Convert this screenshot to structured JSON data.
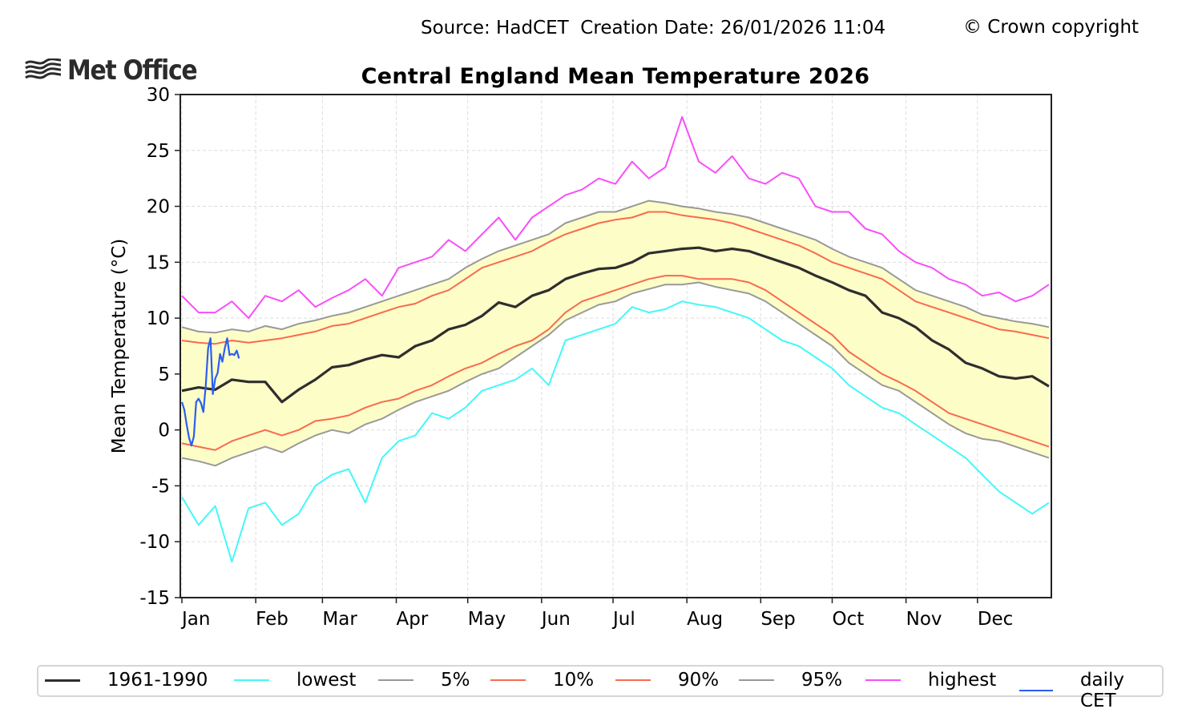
{
  "header": {
    "source_line": "Source: HadCET  Creation Date: 26/01/2026 11:04",
    "copyright": "© Crown copyright",
    "logo_text": "Met Office",
    "logo_icon": "met-office-waves-icon"
  },
  "colors": {
    "mean": "#2e2e2e",
    "lowest": "#44f8f8",
    "p5": "#999999",
    "p10": "#f96a4e",
    "p90": "#f96a4e",
    "p95": "#999999",
    "highest": "#f84ef8",
    "daily": "#2a5ef0",
    "band_fill": "#fdfdc8",
    "grid": "#dddddd"
  },
  "chart_data": {
    "type": "line",
    "title": "Central England Mean Temperature 2026",
    "xlabel": "",
    "ylabel": "Mean Temperature (°C)",
    "ylim": [
      -15,
      30
    ],
    "xlim_days": [
      1,
      365
    ],
    "y_ticks": [
      -15,
      -10,
      -5,
      0,
      5,
      10,
      15,
      20,
      25,
      30
    ],
    "x_ticks": [
      {
        "label": "Jan",
        "day": 1
      },
      {
        "label": "Feb",
        "day": 32
      },
      {
        "label": "Mar",
        "day": 60
      },
      {
        "label": "Apr",
        "day": 91
      },
      {
        "label": "May",
        "day": 121
      },
      {
        "label": "Jun",
        "day": 152
      },
      {
        "label": "Jul",
        "day": 182
      },
      {
        "label": "Aug",
        "day": 213
      },
      {
        "label": "Sep",
        "day": 244
      },
      {
        "label": "Oct",
        "day": 274
      },
      {
        "label": "Nov",
        "day": 305
      },
      {
        "label": "Dec",
        "day": 335
      }
    ],
    "grid": true,
    "legend_position": "bottom",
    "band": {
      "lower": "5%",
      "upper": "95%"
    },
    "sample_days": [
      1,
      8,
      15,
      22,
      29,
      36,
      43,
      50,
      57,
      64,
      71,
      78,
      85,
      92,
      99,
      106,
      113,
      120,
      127,
      134,
      141,
      148,
      155,
      162,
      169,
      176,
      183,
      190,
      197,
      204,
      211,
      218,
      225,
      232,
      239,
      246,
      253,
      260,
      267,
      274,
      281,
      288,
      295,
      302,
      309,
      316,
      323,
      330,
      337,
      344,
      351,
      358,
      365
    ],
    "series": [
      {
        "name": "1961-1990",
        "key": "mean",
        "values": [
          3.5,
          3.8,
          3.6,
          4.5,
          4.3,
          4.3,
          2.5,
          3.6,
          4.5,
          5.6,
          5.8,
          6.3,
          6.7,
          6.5,
          7.5,
          8.0,
          9.0,
          9.4,
          10.2,
          11.4,
          11.0,
          12.0,
          12.5,
          13.5,
          14.0,
          14.4,
          14.5,
          15.0,
          15.8,
          16.0,
          16.2,
          16.3,
          16.0,
          16.2,
          16.0,
          15.5,
          15.0,
          14.5,
          13.8,
          13.2,
          12.5,
          12.0,
          10.5,
          10.0,
          9.2,
          8.0,
          7.2,
          6.0,
          5.5,
          4.8,
          4.6,
          4.8,
          3.9
        ]
      },
      {
        "name": "lowest",
        "key": "lowest",
        "values": [
          -6.0,
          -8.5,
          -6.8,
          -11.8,
          -7.0,
          -6.5,
          -8.5,
          -7.5,
          -5.0,
          -4.0,
          -3.5,
          -6.5,
          -2.5,
          -1.0,
          -0.5,
          1.5,
          1.0,
          2.0,
          3.5,
          4.0,
          4.5,
          5.5,
          4.0,
          8.0,
          8.5,
          9.0,
          9.5,
          11.0,
          10.5,
          10.8,
          11.5,
          11.2,
          11.0,
          10.5,
          10.0,
          9.0,
          8.0,
          7.5,
          6.5,
          5.5,
          4.0,
          3.0,
          2.0,
          1.5,
          0.5,
          -0.5,
          -1.5,
          -2.5,
          -4.0,
          -5.5,
          -6.5,
          -7.5,
          -6.5
        ]
      },
      {
        "name": "5%",
        "key": "p5",
        "values": [
          -2.5,
          -2.8,
          -3.2,
          -2.5,
          -2.0,
          -1.5,
          -2.0,
          -1.2,
          -0.5,
          0.0,
          -0.3,
          0.5,
          1.0,
          1.8,
          2.5,
          3.0,
          3.5,
          4.3,
          5.0,
          5.5,
          6.5,
          7.5,
          8.5,
          9.8,
          10.5,
          11.2,
          11.5,
          12.2,
          12.6,
          13.0,
          13.0,
          13.2,
          12.8,
          12.5,
          12.2,
          11.5,
          10.5,
          9.5,
          8.5,
          7.5,
          6.0,
          5.0,
          4.0,
          3.5,
          2.5,
          1.5,
          0.5,
          -0.3,
          -0.8,
          -1.0,
          -1.5,
          -2.0,
          -2.5
        ]
      },
      {
        "name": "10%",
        "key": "p10",
        "values": [
          -1.2,
          -1.5,
          -1.8,
          -1.0,
          -0.5,
          0.0,
          -0.5,
          0.0,
          0.8,
          1.0,
          1.3,
          2.0,
          2.5,
          2.8,
          3.5,
          4.0,
          4.8,
          5.5,
          6.0,
          6.8,
          7.5,
          8.0,
          9.0,
          10.5,
          11.5,
          12.0,
          12.5,
          13.0,
          13.5,
          13.8,
          13.8,
          13.5,
          13.5,
          13.5,
          13.2,
          12.5,
          11.5,
          10.5,
          9.5,
          8.5,
          7.0,
          6.0,
          5.0,
          4.3,
          3.5,
          2.5,
          1.5,
          1.0,
          0.5,
          0.0,
          -0.5,
          -1.0,
          -1.5
        ]
      },
      {
        "name": "90%",
        "key": "p90",
        "values": [
          8.0,
          7.8,
          7.7,
          8.0,
          7.8,
          8.0,
          8.2,
          8.5,
          8.8,
          9.3,
          9.5,
          10.0,
          10.5,
          11.0,
          11.3,
          12.0,
          12.5,
          13.5,
          14.5,
          15.0,
          15.5,
          16.0,
          16.8,
          17.5,
          18.0,
          18.5,
          18.8,
          19.0,
          19.5,
          19.5,
          19.2,
          19.0,
          18.8,
          18.5,
          18.0,
          17.5,
          17.0,
          16.5,
          15.8,
          15.0,
          14.5,
          14.0,
          13.5,
          12.5,
          11.5,
          11.0,
          10.5,
          10.0,
          9.5,
          9.0,
          8.8,
          8.5,
          8.2
        ]
      },
      {
        "name": "95%",
        "key": "p95",
        "values": [
          9.2,
          8.8,
          8.7,
          9.0,
          8.8,
          9.3,
          9.0,
          9.5,
          9.8,
          10.2,
          10.5,
          11.0,
          11.5,
          12.0,
          12.5,
          13.0,
          13.5,
          14.5,
          15.3,
          16.0,
          16.5,
          17.0,
          17.5,
          18.5,
          19.0,
          19.5,
          19.5,
          20.0,
          20.5,
          20.3,
          20.0,
          19.8,
          19.5,
          19.3,
          19.0,
          18.5,
          18.0,
          17.5,
          17.0,
          16.2,
          15.5,
          15.0,
          14.5,
          13.5,
          12.5,
          12.0,
          11.5,
          11.0,
          10.3,
          10.0,
          9.7,
          9.5,
          9.2
        ]
      },
      {
        "name": "highest",
        "key": "highest",
        "values": [
          12.0,
          10.5,
          10.5,
          11.5,
          10.0,
          12.0,
          11.5,
          12.5,
          11.0,
          11.8,
          12.5,
          13.5,
          12.0,
          14.5,
          15.0,
          15.5,
          17.0,
          16.0,
          17.5,
          19.0,
          17.0,
          19.0,
          20.0,
          21.0,
          21.5,
          22.5,
          22.0,
          24.0,
          22.5,
          23.5,
          28.0,
          24.0,
          23.0,
          24.5,
          22.5,
          22.0,
          23.0,
          22.5,
          20.0,
          19.5,
          19.5,
          18.0,
          17.5,
          16.0,
          15.0,
          14.5,
          13.5,
          13.0,
          12.0,
          12.3,
          11.5,
          12.0,
          13.0
        ]
      },
      {
        "name": "daily CET",
        "key": "daily",
        "days": [
          1,
          2,
          3,
          4,
          5,
          6,
          7,
          8,
          9,
          10,
          11,
          12,
          13,
          14,
          15,
          16,
          17,
          18,
          19,
          20,
          21,
          22,
          23,
          24,
          25
        ],
        "values": [
          2.5,
          1.8,
          0.5,
          -0.7,
          -1.4,
          -0.6,
          2.5,
          2.8,
          2.4,
          1.6,
          3.9,
          7.3,
          8.2,
          3.2,
          4.6,
          5.1,
          6.8,
          6.1,
          7.3,
          8.2,
          6.7,
          6.8,
          6.7,
          7.1,
          6.4
        ]
      }
    ],
    "legend": [
      {
        "label": "1961-1990",
        "key": "mean"
      },
      {
        "label": "lowest",
        "key": "lowest"
      },
      {
        "label": "5%",
        "key": "p5"
      },
      {
        "label": "10%",
        "key": "p10"
      },
      {
        "label": "90%",
        "key": "p90"
      },
      {
        "label": "95%",
        "key": "p95"
      },
      {
        "label": "highest",
        "key": "highest"
      },
      {
        "label": "daily CET",
        "key": "daily"
      }
    ]
  }
}
